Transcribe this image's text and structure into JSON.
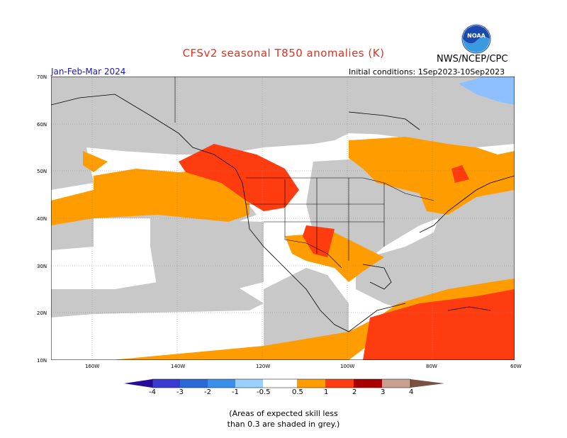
{
  "header": {
    "title": "CFSv2 seasonal T850 anomalies (K)",
    "agency": "NWS/NCEP/CPC",
    "season": "Jan-Feb-Mar 2024",
    "initial_conditions": "Initial conditions: 1Sep2023-10Sep2023"
  },
  "logo": {
    "text": "NOAA",
    "icon": "noaa-logo-icon"
  },
  "map": {
    "lat_labels": [
      "70N",
      "60N",
      "50N",
      "40N",
      "30N",
      "20N",
      "10N"
    ],
    "lon_labels": [
      "160W",
      "140W",
      "120W",
      "100W",
      "80W",
      "60W"
    ],
    "region": "North America"
  },
  "legend": {
    "labels": [
      "-4",
      "-3",
      "-2",
      "-1",
      "-0.5",
      "0.5",
      "1",
      "2",
      "3",
      "4"
    ],
    "colors": [
      "#2a0a9a",
      "#3a3ad0",
      "#2a6ad8",
      "#3a90e8",
      "#9ad0ff",
      "#ffffff",
      "#ff9c00",
      "#ff3c10",
      "#a80000",
      "#6b0000",
      "#c8a090",
      "#7a5040"
    ]
  },
  "note": {
    "line1": "(Areas of expected skill less",
    "line2": "than 0.3 are shaded in grey.)"
  },
  "colors": {
    "grey": "#c8c8c8",
    "orange": "#ff9c00",
    "red": "#ff3c10",
    "lightblue": "#8ec0ff",
    "title": "#e03020",
    "season": "#1a1aa8"
  }
}
